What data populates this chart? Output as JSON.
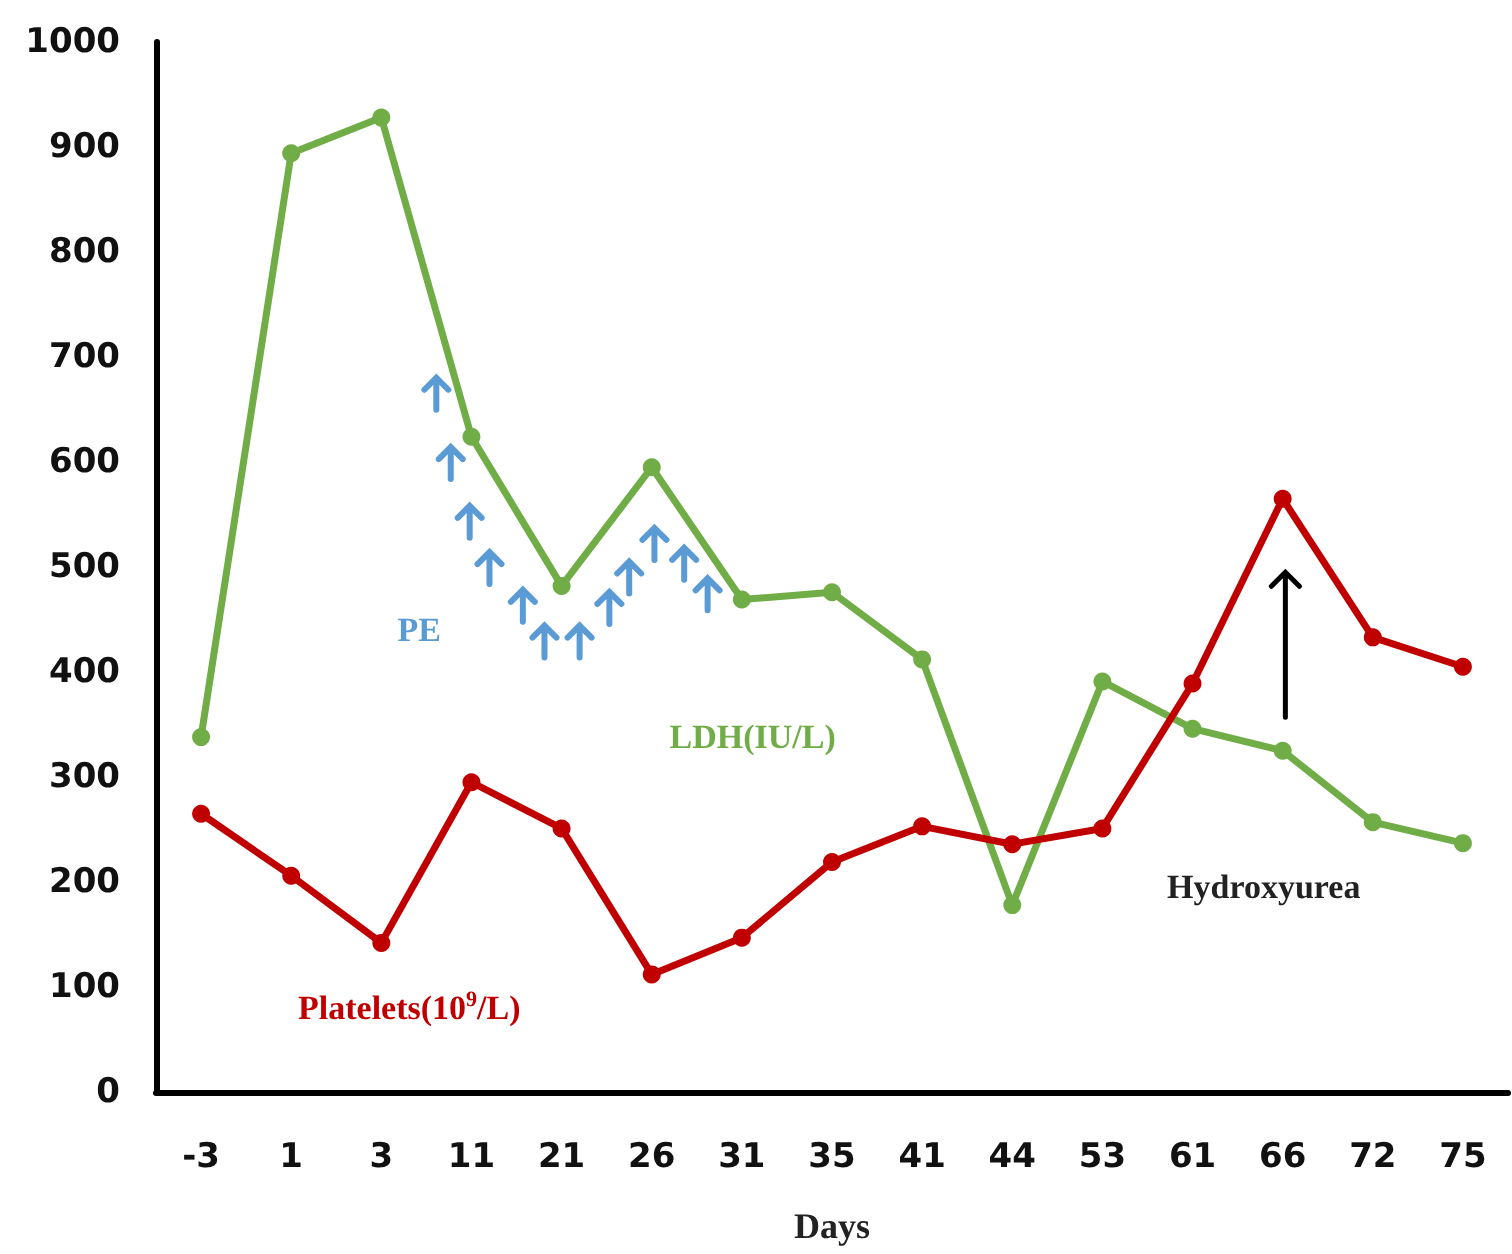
{
  "chart_data": {
    "type": "line",
    "xlabel": "Days",
    "categories": [
      "-3",
      "1",
      "3",
      "11",
      "21",
      "26",
      "31",
      "35",
      "41",
      "44",
      "53",
      "61",
      "66",
      "72",
      "75"
    ],
    "series": [
      {
        "name": "LDH(IU/L)",
        "color": "#70ad47",
        "values": [
          338,
          894,
          928,
          624,
          482,
          595,
          469,
          476,
          412,
          178,
          391,
          346,
          325,
          257,
          237
        ]
      },
      {
        "name": "Platelets(10$^{9}$/L)",
        "color": "#c00000",
        "values": [
          265,
          206,
          142,
          295,
          251,
          112,
          147,
          219,
          253,
          236,
          251,
          389,
          565,
          433,
          405
        ]
      }
    ],
    "ylim": [
      0,
      1000
    ],
    "yticks": [
      0,
      100,
      200,
      300,
      400,
      500,
      600,
      700,
      800,
      900,
      1000
    ],
    "annotations": [
      "PE",
      "Hydroxyurea"
    ],
    "grid": false,
    "legend": false,
    "marker": "circle",
    "line_style": "solid"
  }
}
